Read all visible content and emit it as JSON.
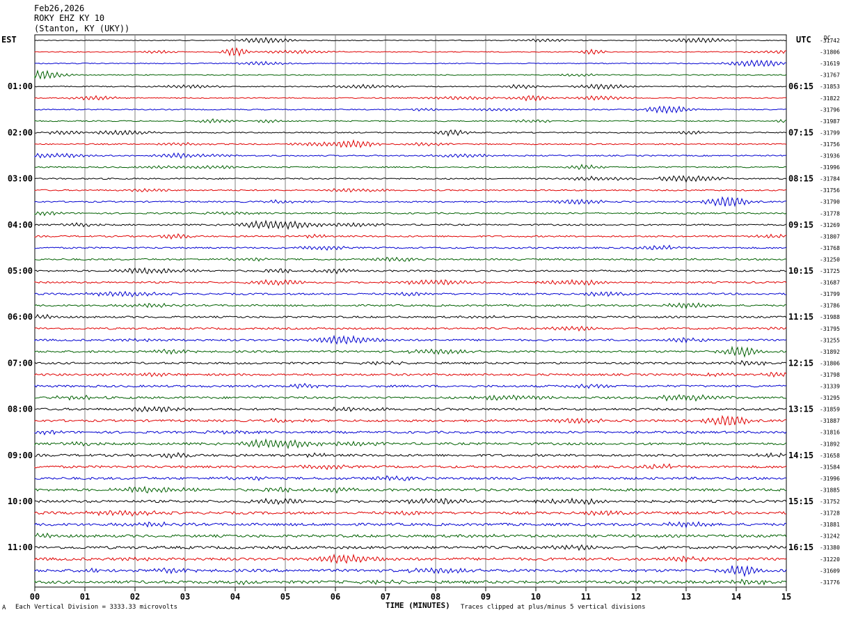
{
  "header": {
    "date": "Feb26,2026",
    "station": "ROKY EHZ KY 10",
    "location": "(Stanton, KY (UKY))"
  },
  "left_tz": "EST",
  "right_tz": "UTC",
  "dc_label": "DC",
  "footer": {
    "scale_note": "Each Vertical Division = 3333.33 microvolts",
    "axis_title": "TIME (MINUTES)",
    "clip_note": "Traces clipped at plus/minus 5 vertical divisions",
    "corner_mark": "A"
  },
  "colors": {
    "trace_cycle": [
      "#000000",
      "#e00000",
      "#0000d0",
      "#006000"
    ],
    "grid": "#808080"
  },
  "chart_data": {
    "type": "line",
    "title": "",
    "xlabel": "TIME (MINUTES)",
    "ylabel": "",
    "xlim": [
      0,
      15
    ],
    "x_ticks": [
      "00",
      "01",
      "02",
      "03",
      "04",
      "05",
      "06",
      "07",
      "08",
      "09",
      "10",
      "11",
      "12",
      "13",
      "14",
      "15"
    ],
    "grid": true,
    "rows_per_hour": 4,
    "row_count": 48,
    "left_hour_labels": [
      "01:00",
      "02:00",
      "03:00",
      "04:00",
      "05:00",
      "06:00",
      "07:00",
      "08:00",
      "09:00",
      "10:00",
      "11:00"
    ],
    "right_hour_labels": [
      "06:15",
      "07:15",
      "08:15",
      "09:15",
      "10:15",
      "11:15",
      "12:15",
      "13:15",
      "14:15",
      "15:15",
      "16:15"
    ],
    "dc_offsets": [
      "-31742",
      "-31806",
      "-31619",
      "-31767",
      "-31853",
      "-31822",
      "-31796",
      "-31987",
      "-31799",
      "-31756",
      "-31936",
      "-31996",
      "-31784",
      "-31756",
      "-31790",
      "-31778",
      "-31269",
      "-31807",
      "-31768",
      "-31250",
      "-31725",
      "-31687",
      "-31799",
      "-31786",
      "-31988",
      "-31795",
      "-31255",
      "-31892",
      "-31806",
      "-31798",
      "-31339",
      "-31295",
      "-31859",
      "-31887",
      "-31816",
      "-31892",
      "-31658",
      "-31584",
      "-31996",
      "-31885",
      "-31752",
      "-31728",
      "-31881",
      "-31242",
      "-31380",
      "-31220",
      "-31609",
      "-31776"
    ]
  }
}
